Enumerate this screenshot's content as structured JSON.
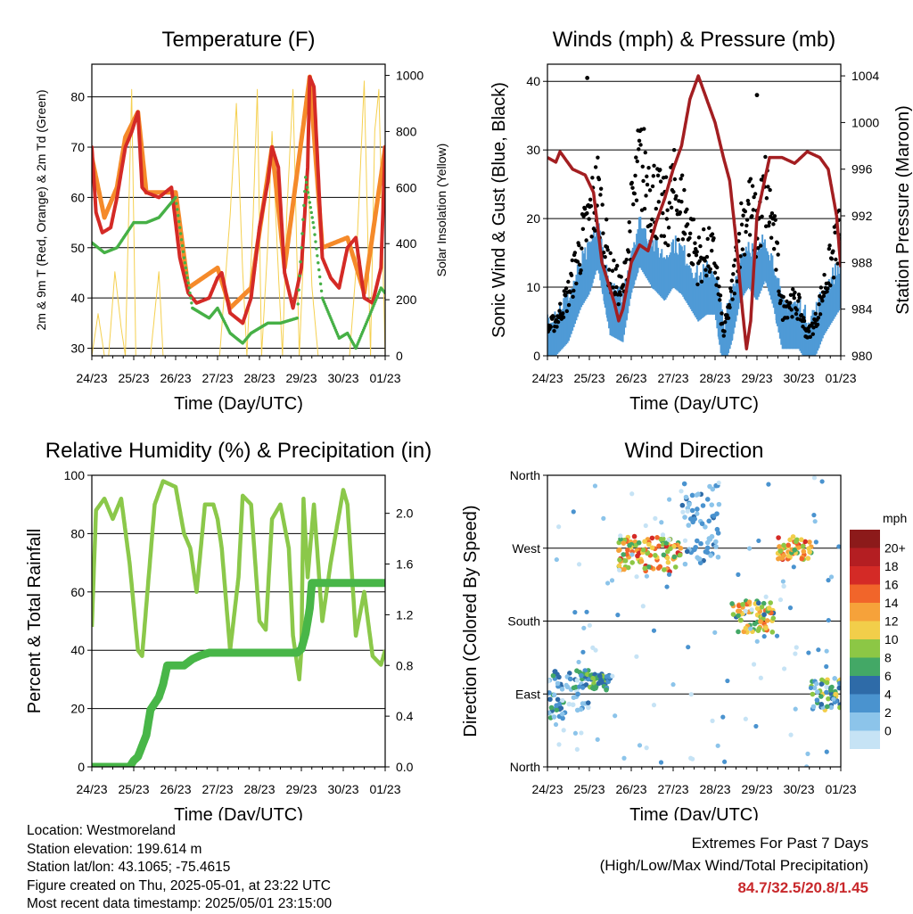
{
  "colors": {
    "red": "#d42a26",
    "orange": "#f58a2a",
    "green": "#46b046",
    "yellow": "#f5d050",
    "blue": "#4f9ad6",
    "black": "#000000",
    "maroon": "#a31e21",
    "humidity": "#8bc84a",
    "rain": "#48b648",
    "extremes": "#c8282b"
  },
  "x_ticks": [
    "24/23",
    "25/23",
    "26/23",
    "27/23",
    "28/23",
    "29/23",
    "30/23",
    "01/23"
  ],
  "x_label": "Time (Day/UTC)",
  "chart_data": [
    {
      "type": "line",
      "id": "temperature",
      "title": "Temperature (F)",
      "ylabel_left": "2m & 9m T (Red, Orange) & 2m Td (Green)",
      "ylabel_right": "Solar Insolation (Yellow)",
      "ylim_left": [
        28.5,
        86.5
      ],
      "yticks_left": [
        30,
        40,
        50,
        60,
        70,
        80
      ],
      "ylim_right": [
        0,
        1040
      ],
      "yticks_right": [
        0,
        200,
        400,
        600,
        800,
        1000
      ],
      "grid": true,
      "series": [
        {
          "color": "red",
          "x": [
            0,
            0.1,
            0.25,
            0.45,
            0.6,
            0.8,
            0.95,
            1.1,
            1.2,
            1.3,
            1.6,
            1.9,
            2.1,
            2.3,
            2.5,
            2.8,
            3.0,
            3.1,
            3.3,
            3.6,
            3.8,
            4.0,
            4.2,
            4.3,
            4.45,
            4.6,
            4.8,
            5.0,
            5.15,
            5.2,
            5.3,
            5.5,
            5.7,
            5.9,
            6.1,
            6.3,
            6.5,
            6.7,
            6.9,
            7.0
          ],
          "y": [
            70,
            57,
            53,
            54,
            60,
            70,
            73,
            77,
            62,
            61,
            60,
            62,
            48,
            41,
            39,
            40,
            44,
            45,
            37,
            35,
            40,
            54,
            63,
            70,
            66,
            45,
            38,
            46,
            66,
            84,
            82,
            48,
            44,
            42,
            50,
            52,
            40,
            39,
            46,
            70
          ]
        },
        {
          "color": "orange",
          "x": [
            0,
            0.3,
            0.6,
            0.8,
            1.1,
            1.3,
            2.0,
            2.3,
            3.0,
            3.3,
            3.8,
            4.3,
            4.6,
            5.2,
            5.5,
            6.1,
            6.5,
            7.0
          ],
          "y": [
            68,
            56,
            62,
            72,
            77,
            61,
            61,
            42,
            46,
            38,
            42,
            70,
            46,
            84,
            50,
            52,
            41,
            70
          ]
        },
        {
          "color": "green",
          "x": [
            0,
            0.3,
            0.6,
            1.0,
            1.3,
            1.6,
            2.0,
            2.2,
            2.4,
            2.6,
            2.8,
            3.0,
            3.3,
            3.6,
            3.8,
            4.2,
            4.5,
            4.9,
            5.1,
            5.3,
            5.5,
            5.7,
            5.9,
            6.1,
            6.3,
            6.6,
            6.9,
            7.0
          ],
          "y": [
            51,
            49,
            50,
            55,
            55,
            56,
            60,
            48,
            38,
            37,
            36,
            38,
            33,
            31,
            33,
            35,
            35,
            36,
            64,
            54,
            40,
            36,
            32,
            33,
            30,
            36,
            42,
            41
          ]
        },
        {
          "color": "yellow",
          "axis": "right",
          "x": [
            0,
            0.15,
            0.3,
            0.4,
            0.55,
            0.7,
            0.8,
            0.95,
            1.05,
            1.2,
            1.4,
            1.6,
            1.7,
            1.75,
            1.9,
            2.3,
            2.5,
            2.7,
            3.05,
            3.3,
            3.45,
            3.6,
            3.7,
            3.85,
            3.95,
            4.05,
            4.2,
            4.3,
            4.45,
            4.55,
            4.65,
            4.8,
            4.95,
            5.15,
            5.25,
            5.4,
            5.6,
            5.9,
            6.15,
            6.3,
            6.5,
            6.65,
            6.75,
            6.85,
            7.0
          ],
          "y": [
            0,
            150,
            0,
            0,
            300,
            100,
            0,
            950,
            0,
            0,
            0,
            300,
            0,
            0,
            0,
            0,
            0,
            0,
            0,
            500,
            900,
            300,
            0,
            500,
            950,
            0,
            400,
            800,
            300,
            0,
            500,
            950,
            0,
            700,
            250,
            0,
            0,
            0,
            0,
            300,
            980,
            0,
            800,
            950,
            0
          ]
        }
      ]
    },
    {
      "type": "line",
      "id": "winds",
      "title": "Winds (mph) & Pressure (mb)",
      "ylabel_left": "Sonic Wind & Gust (Blue, Black)",
      "ylabel_right": "Station Pressure (Maroon)",
      "ylim_left": [
        0,
        42.5
      ],
      "yticks_left": [
        0,
        10,
        20,
        30,
        40
      ],
      "ylim_right": [
        980,
        1005
      ],
      "yticks_right": [
        980,
        984,
        988,
        992,
        996,
        1000,
        1004
      ],
      "grid": true,
      "series": [
        {
          "color": "blue",
          "name": "wind",
          "x": [
            0,
            0.2,
            0.5,
            0.8,
            1.0,
            1.2,
            1.5,
            1.8,
            2.0,
            2.2,
            2.5,
            2.8,
            3.0,
            3.2,
            3.4,
            3.6,
            3.8,
            4.0,
            4.2,
            4.4,
            4.6,
            4.8,
            5.0,
            5.2,
            5.4,
            5.6,
            5.8,
            6.0,
            6.2,
            6.4,
            6.6,
            6.8,
            7.0
          ],
          "y": [
            2,
            3,
            5,
            10,
            12,
            16,
            6,
            5,
            12,
            16,
            13,
            11,
            13,
            12,
            10,
            8,
            9,
            9,
            1,
            5,
            11,
            13,
            11,
            14,
            10,
            4,
            4,
            4,
            2,
            3,
            6,
            8,
            10
          ]
        },
        {
          "color": "black",
          "name": "gust",
          "x": [
            0,
            0.2,
            0.5,
            0.8,
            1.0,
            1.2,
            1.5,
            1.8,
            2.0,
            2.2,
            2.5,
            2.8,
            3.0,
            3.2,
            3.4,
            3.6,
            3.8,
            4.0,
            4.2,
            4.4,
            4.6,
            4.8,
            5.0,
            5.2,
            5.4,
            5.6,
            5.8,
            6.0,
            6.2,
            6.4,
            6.6,
            6.8,
            7.0
          ],
          "y": [
            4,
            5,
            9,
            16,
            20,
            24,
            12,
            9,
            20,
            28,
            24,
            20,
            24,
            22,
            18,
            14,
            15,
            14,
            3,
            9,
            18,
            22,
            18,
            24,
            18,
            7,
            8,
            7,
            3,
            5,
            10,
            14,
            19
          ]
        },
        {
          "color": "maroon",
          "name": "pressure",
          "axis": "right",
          "x": [
            0,
            0.2,
            0.3,
            0.6,
            0.9,
            1.1,
            1.3,
            1.6,
            1.7,
            1.8,
            2.0,
            2.2,
            2.4,
            2.6,
            2.8,
            3.0,
            3.2,
            3.4,
            3.6,
            3.8,
            4.0,
            4.2,
            4.35,
            4.5,
            4.65,
            4.75,
            4.85,
            5.0,
            5.3,
            5.6,
            5.9,
            6.2,
            6.5,
            6.7,
            6.9,
            7.0
          ],
          "y": [
            997,
            996.6,
            997.5,
            996,
            995.5,
            994,
            988,
            984.5,
            983,
            984,
            988,
            989.5,
            989,
            991.5,
            993.5,
            996,
            998,
            1002,
            1004,
            1002,
            1000,
            997,
            995,
            990,
            984,
            980.6,
            983,
            992,
            997,
            997,
            996.5,
            997.5,
            997,
            996,
            992,
            987.6
          ]
        }
      ],
      "outliers": [
        {
          "x": 0.95,
          "y": 40.5
        },
        {
          "x": 5.0,
          "y": 38
        }
      ]
    },
    {
      "type": "line",
      "id": "humidity",
      "title": "Relative Humidity (%) & Precipitation (in)",
      "ylabel_left": "Percent & Total Rainfall",
      "ylim_left": [
        0,
        100
      ],
      "yticks_left": [
        0,
        20,
        40,
        60,
        80,
        100
      ],
      "ylim_right": [
        0,
        2.3
      ],
      "yticks_right": [
        0,
        0.4,
        0.8,
        1.2,
        1.6,
        2.0
      ],
      "grid": true,
      "series": [
        {
          "color": "humidity",
          "name": "rh",
          "x": [
            0,
            0.1,
            0.3,
            0.5,
            0.7,
            0.9,
            1.1,
            1.2,
            1.5,
            1.7,
            2.0,
            2.2,
            2.35,
            2.5,
            2.7,
            2.9,
            3.0,
            3.1,
            3.3,
            3.5,
            3.6,
            3.8,
            4.0,
            4.15,
            4.3,
            4.5,
            4.7,
            4.8,
            4.95,
            5.0,
            5.05,
            5.15,
            5.3,
            5.5,
            5.7,
            6.0,
            6.1,
            6.3,
            6.5,
            6.7,
            6.9,
            7.0
          ],
          "y": [
            48,
            88,
            92,
            85,
            92,
            70,
            40,
            38,
            90,
            98,
            96,
            80,
            75,
            60,
            90,
            90,
            85,
            75,
            40,
            65,
            93,
            90,
            50,
            47,
            85,
            90,
            75,
            45,
            30,
            40,
            92,
            65,
            90,
            50,
            70,
            95,
            90,
            45,
            60,
            38,
            35,
            40
          ]
        },
        {
          "color": "rain",
          "name": "precip",
          "axis": "right",
          "x": [
            0,
            0.9,
            1.0,
            1.1,
            1.3,
            1.4,
            1.6,
            1.7,
            1.8,
            2.2,
            2.4,
            2.6,
            2.8,
            3.2,
            3.5,
            4.0,
            4.5,
            4.9,
            5.0,
            5.1,
            5.2,
            5.25,
            6.0,
            6.5,
            7.0
          ],
          "y": [
            0,
            0,
            0.05,
            0.08,
            0.25,
            0.45,
            0.55,
            0.65,
            0.8,
            0.8,
            0.85,
            0.88,
            0.9,
            0.9,
            0.9,
            0.9,
            0.9,
            0.9,
            0.93,
            1.05,
            1.25,
            1.45,
            1.45,
            1.45,
            1.45
          ]
        }
      ]
    },
    {
      "type": "scatter",
      "id": "direction",
      "title": "Wind Direction",
      "ylabel_left": "Direction (Colored By Speed)",
      "yticks_left": [
        "North",
        "East",
        "South",
        "West",
        "North"
      ],
      "grid": true,
      "colorbar": {
        "unit": "mph",
        "labels": [
          "0",
          "2",
          "4",
          "6",
          "8",
          "10",
          "12",
          "14",
          "16",
          "18",
          "20+"
        ],
        "colors": [
          "#c6e3f5",
          "#8cc4ea",
          "#4a93cf",
          "#2e6ba8",
          "#43a866",
          "#8cc745",
          "#f2ce4a",
          "#f6a23a",
          "#f1652a",
          "#d42a26",
          "#b41e22",
          "#8c1a1a"
        ]
      },
      "clusters": [
        {
          "x": [
            0,
            1.0
          ],
          "deg": [
            60,
            120
          ],
          "speed": [
            0,
            9
          ]
        },
        {
          "x": [
            0.8,
            1.5
          ],
          "deg": [
            95,
            115
          ],
          "speed": [
            4,
            10
          ]
        },
        {
          "x": [
            1.7,
            3.2
          ],
          "deg": [
            240,
            285
          ],
          "speed": [
            8,
            18
          ]
        },
        {
          "x": [
            3.2,
            4.1
          ],
          "deg": [
            250,
            350
          ],
          "speed": [
            1,
            6
          ]
        },
        {
          "x": [
            4.4,
            5.4
          ],
          "deg": [
            165,
            205
          ],
          "speed": [
            6,
            16
          ]
        },
        {
          "x": [
            5.5,
            6.3
          ],
          "deg": [
            255,
            285
          ],
          "speed": [
            8,
            18
          ]
        },
        {
          "x": [
            6.3,
            7.0
          ],
          "deg": [
            70,
            110
          ],
          "speed": [
            2,
            12
          ]
        }
      ]
    }
  ],
  "info": {
    "location": "Location: Westmoreland",
    "elevation": "Station elevation: 199.614 m",
    "latlon": "Station lat/lon: 43.1065; -75.4615",
    "created": "Figure created on Thu, 2025-05-01, at 23:22 UTC",
    "recent": "Most recent data timestamp: 2025/05/01 23:15:00"
  },
  "extremes": {
    "title": "Extremes For Past 7 Days",
    "subtitle": "(High/Low/Max Wind/Total Precipitation)",
    "values": "84.7/32.5/20.8/1.45"
  }
}
